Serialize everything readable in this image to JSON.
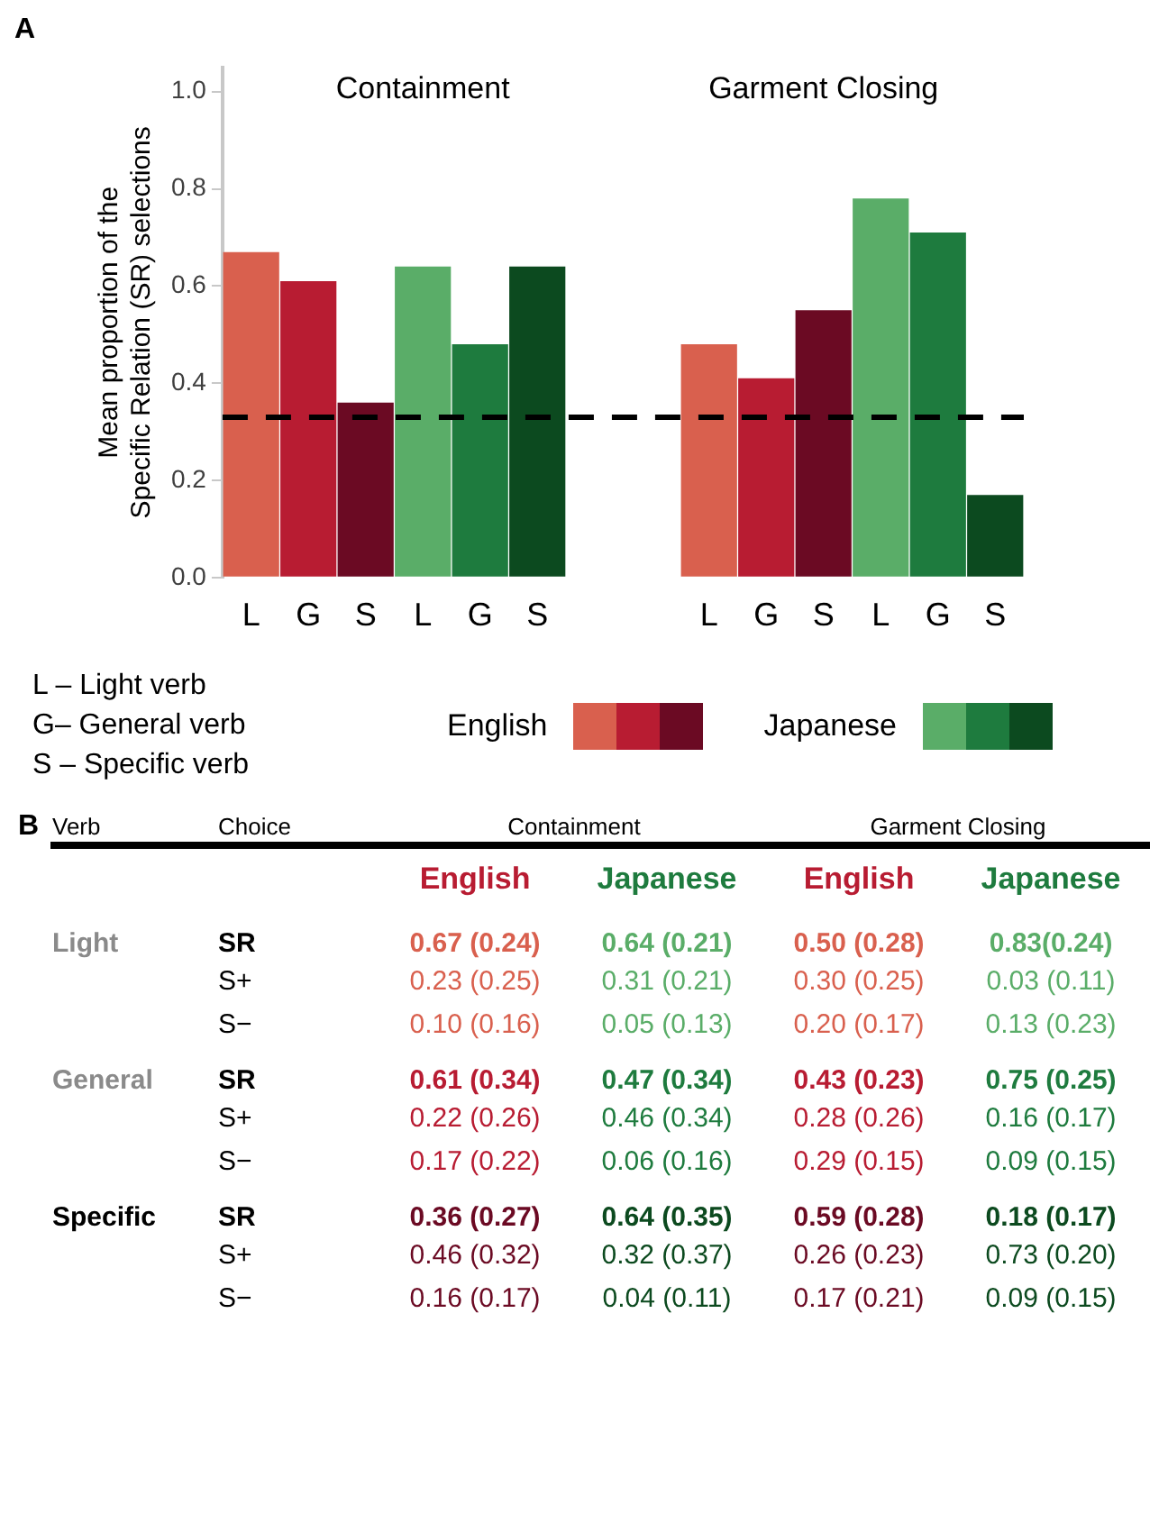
{
  "chart_data": [
    {
      "type": "bar",
      "title": "A",
      "ylabel": "Mean proportion of the\nSpecific Relation (SR) selections",
      "categories": [
        "L",
        "G",
        "S",
        "L",
        "G",
        "S",
        null,
        null,
        "L",
        "G",
        "S",
        "L",
        "G",
        "S"
      ],
      "series": [
        {
          "name": "English",
          "colors": [
            "#d9604e",
            "#b81c32",
            "#6b0a23",
            null,
            null,
            null,
            null,
            null,
            "#d9604e",
            "#b81c32",
            "#6b0a23",
            null,
            null,
            null
          ],
          "values": [
            0.67,
            0.61,
            0.36,
            null,
            null,
            null,
            null,
            null,
            0.48,
            0.41,
            0.55,
            null,
            null,
            null
          ]
        },
        {
          "name": "Japanese",
          "colors": [
            null,
            null,
            null,
            "#5aad68",
            "#1e7b3e",
            "#0c4a1f",
            null,
            null,
            null,
            null,
            null,
            "#5aad68",
            "#1e7b3e",
            "#0c4a1f"
          ],
          "values": [
            null,
            null,
            null,
            0.64,
            0.48,
            0.64,
            null,
            null,
            null,
            null,
            null,
            0.78,
            0.71,
            0.17
          ]
        }
      ],
      "ylim": [
        0,
        1.05
      ],
      "yticks": [
        {
          "value": 0,
          "label": "0.0"
        },
        0.2,
        0.4,
        0.6,
        0.8,
        {
          "value": 1,
          "label": "1.0"
        }
      ],
      "grid": false,
      "legend": "bottom",
      "ref_lines": [
        {
          "axis": "y",
          "value": 0.33,
          "color": "#000000",
          "line_style": "dashed"
        }
      ],
      "annotations": [
        "Containment",
        "Garment Closing",
        "L – Light verb",
        "G– General verb",
        "S – Specific verb"
      ]
    },
    {
      "type": "other",
      "title": "B",
      "annotations": [
        "Verb",
        "Choice",
        "Containment",
        "Garment Closing",
        "English",
        "Japanese",
        "English",
        "Japanese",
        "Light",
        "SR",
        "0.67 (0.24)",
        "0.64 (0.21)",
        "0.50 (0.28)",
        "0.83(0.24)",
        "S+",
        "0.23 (0.25)",
        "0.31 (0.21)",
        "0.30 (0.25)",
        "0.03 (0.11)",
        "S−",
        "0.10 (0.16)",
        "0.05 (0.13)",
        "0.20 (0.17)",
        "0.13 (0.23)",
        "General",
        "SR",
        "0.61 (0.34)",
        "0.47 (0.34)",
        "0.43 (0.23)",
        "0.75 (0.25)",
        "S+",
        "0.22 (0.26)",
        "0.46 (0.34)",
        "0.28 (0.26)",
        "0.16 (0.17)",
        "S−",
        "0.17 (0.22)",
        "0.06 (0.16)",
        "0.29 (0.15)",
        "0.09 (0.15)",
        "Specific",
        "SR",
        "0.36 (0.27)",
        "0.64 (0.35)",
        "0.59 (0.28)",
        "0.18 (0.17)",
        "S+",
        "0.46 (0.32)",
        "0.32 (0.37)",
        "0.26 (0.23)",
        "0.73 (0.20)",
        "S−",
        "0.16 (0.17)",
        "0.04 (0.11)",
        "0.17 (0.21)",
        "0.09 (0.15)"
      ]
    }
  ]
}
